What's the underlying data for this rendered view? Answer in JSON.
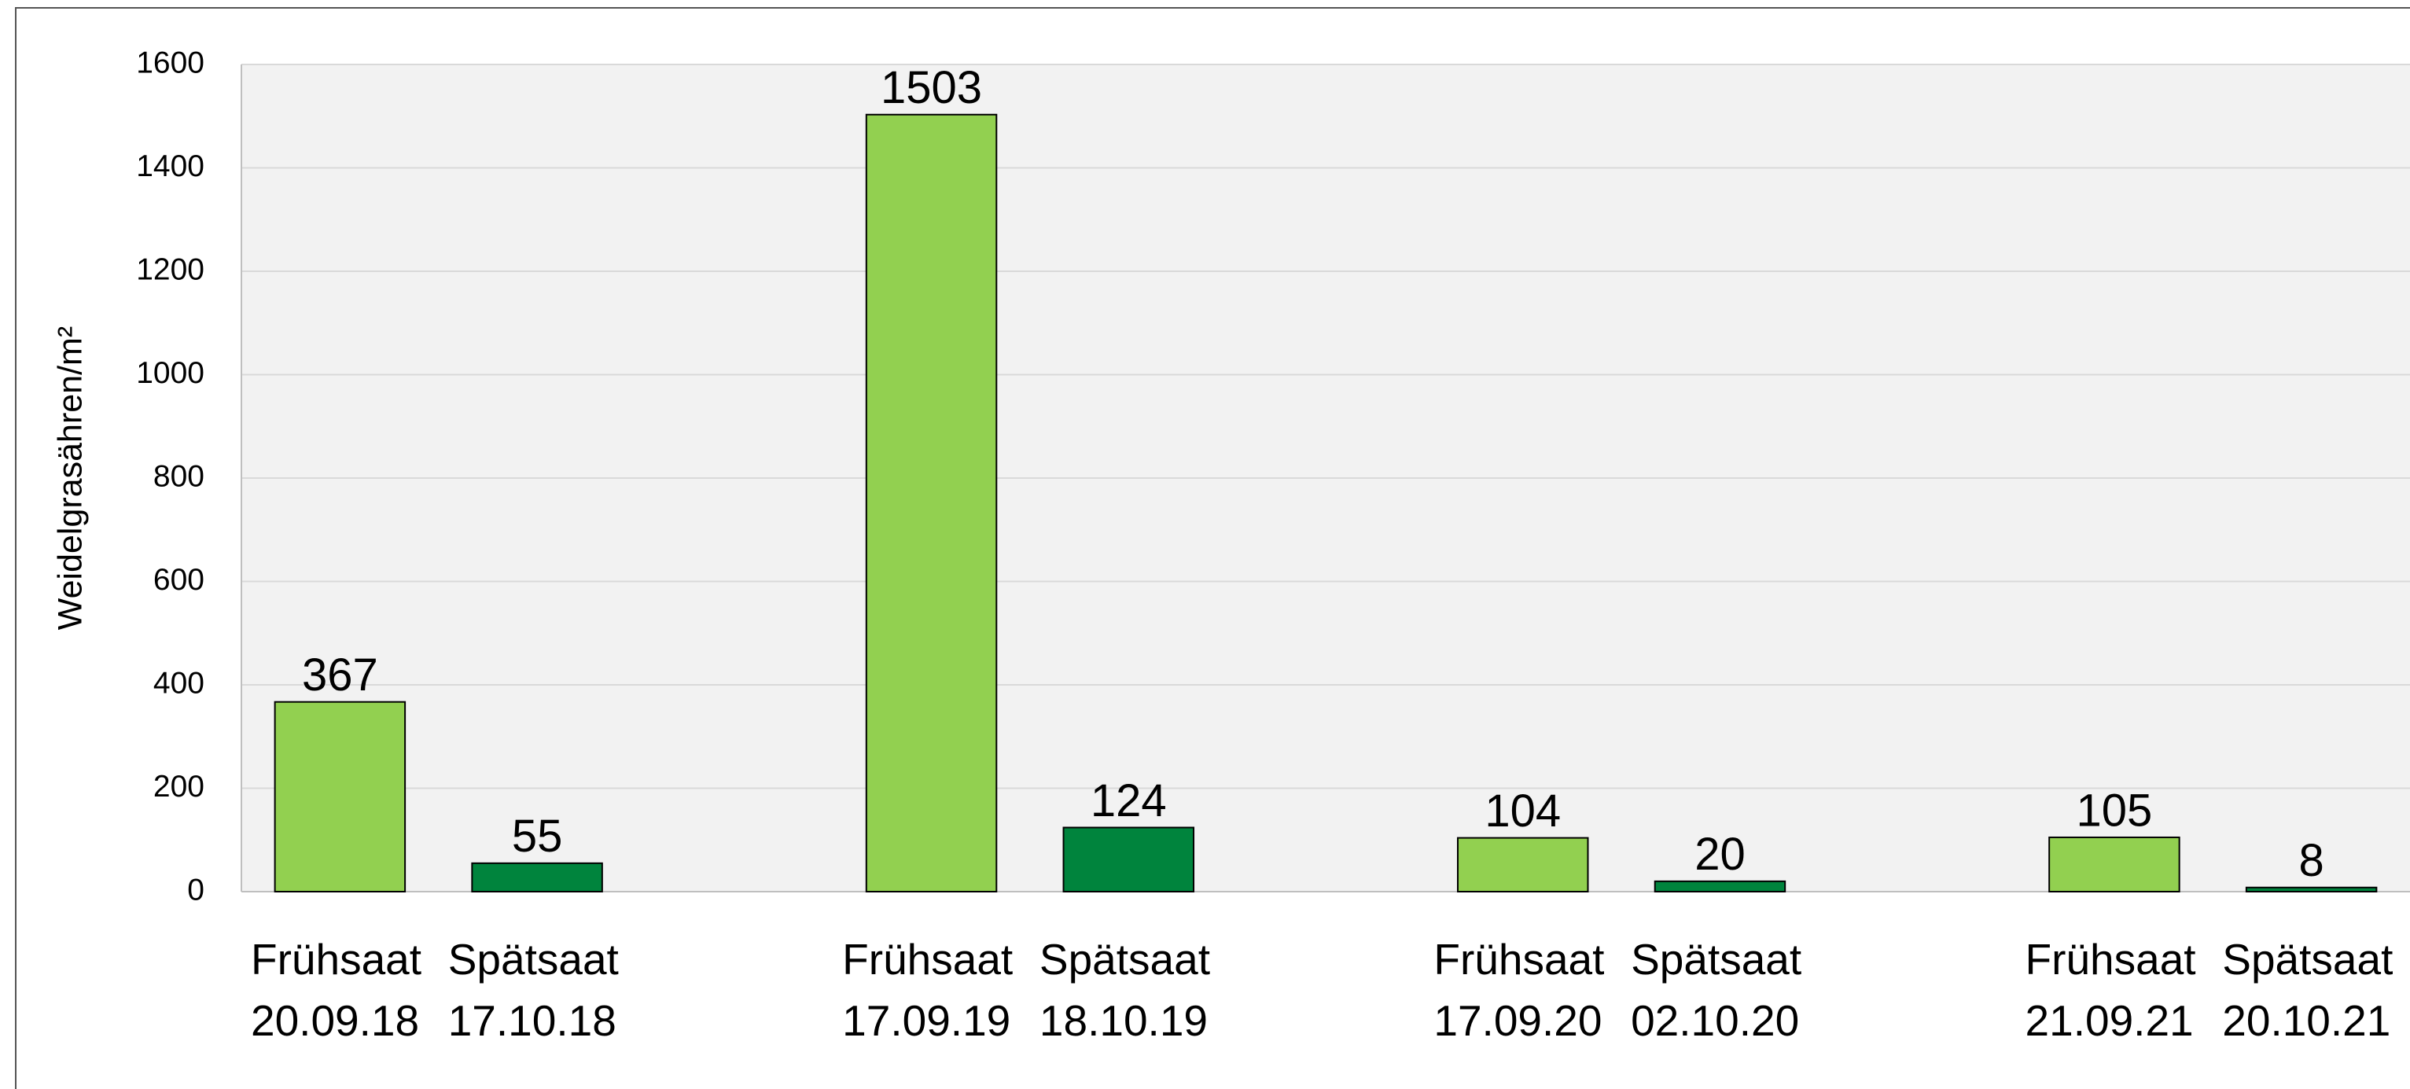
{
  "chart_data": {
    "type": "bar",
    "y_label": "Weidelgrasähren/m²",
    "categories": [
      "Frühsaat 20.09.18",
      "Spätsaat 17.10.18",
      null,
      "Frühsaat 17.09.19",
      "Spätsaat 18.10.19",
      null,
      "Frühsaat 17.09.20",
      "Spätsaat 02.10.20",
      null,
      "Frühsaat 21.09.21",
      "Spätsaat 20.10.21"
    ],
    "values": [
      367,
      55,
      null,
      1503,
      124,
      null,
      104,
      20,
      null,
      105,
      8
    ],
    "colors": [
      "#92d050",
      "#00843d",
      null,
      "#92d050",
      "#00843d",
      null,
      "#92d050",
      "#00843d",
      null,
      "#92d050",
      "#00843d"
    ],
    "ylim": [
      0,
      1600
    ],
    "yticks": [
      0,
      200,
      400,
      600,
      800,
      1000,
      1200,
      1400,
      1600
    ],
    "grid": true
  }
}
